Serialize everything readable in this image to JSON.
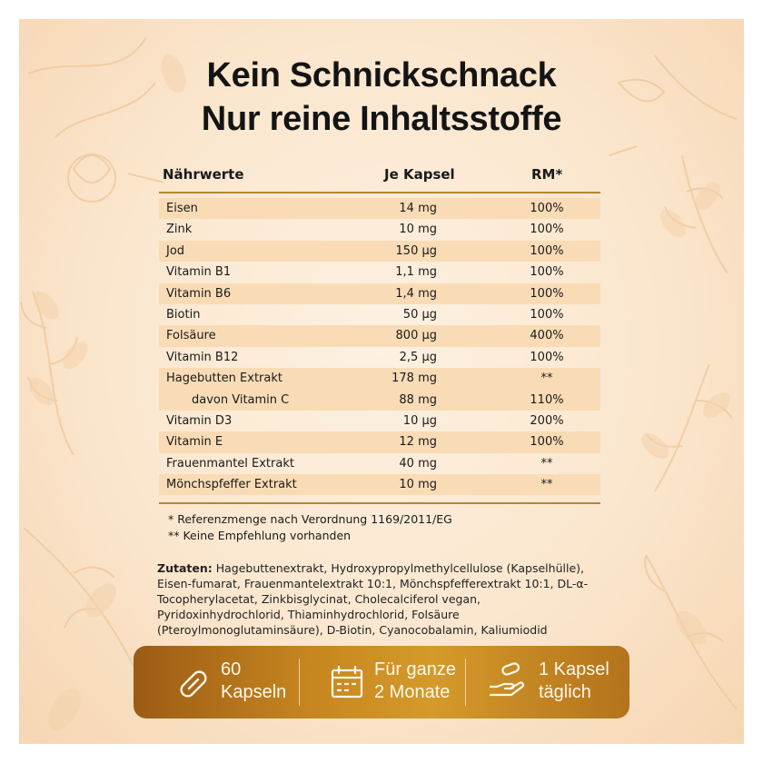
{
  "title": {
    "line1": "Kein Schnickschnack",
    "line2": "Nur reine Inhaltsstoffe"
  },
  "table": {
    "headers": {
      "name": "Nährwerte",
      "amount": "Je Kapsel",
      "rm": "RM*"
    },
    "rows": [
      {
        "name": "Eisen",
        "amount": "14 mg",
        "rm": "100%"
      },
      {
        "name": "Zink",
        "amount": "10 mg",
        "rm": "100%"
      },
      {
        "name": "Jod",
        "amount": "150 µg",
        "rm": "100%"
      },
      {
        "name": "Vitamin B1",
        "amount": "1,1 mg",
        "rm": "100%"
      },
      {
        "name": "Vitamin B6",
        "amount": "1,4 mg",
        "rm": "100%"
      },
      {
        "name": "Biotin",
        "amount": "50 µg",
        "rm": "100%"
      },
      {
        "name": "Folsäure",
        "amount": "800 µg",
        "rm": "400%"
      },
      {
        "name": "Vitamin B12",
        "amount": "2,5 µg",
        "rm": "100%"
      },
      {
        "name": "Hagebutten Extrakt",
        "amount": "178 mg",
        "rm": "**"
      },
      {
        "name": "davon Vitamin C",
        "amount": "88 mg",
        "rm": "110%"
      },
      {
        "name": "Vitamin D3",
        "amount": "10 µg",
        "rm": "200%"
      },
      {
        "name": "Vitamin E",
        "amount": "12 mg",
        "rm": "100%"
      },
      {
        "name": "Frauenmantel Extrakt",
        "amount": "40 mg",
        "rm": "**"
      },
      {
        "name": "Mönchspfeffer Extrakt",
        "amount": "10 mg",
        "rm": "**"
      }
    ]
  },
  "footnotes": {
    "note1": "* Referenzmenge nach Verordnung 1169/2011/EG",
    "note2": "** Keine Empfehlung vorhanden"
  },
  "ingredients": {
    "label": "Zutaten:",
    "text": "Hagebuttenextrakt, Hydroxypropylmethylcellulose (Kapselhülle), Eisen-fumarat, Frauenmantelextrakt 10:1, Mönchspfefferextrakt 10:1, DL-α-Tocopherylacetat, Zinkbisglycinat, Cholecalciferol vegan, Pyridoxinhydrochlorid, Thiaminhydrochlorid, Folsäure (Pteroylmonoglutaminsäure), D-Biotin, Cyanocobalamin, Kaliumiodid"
  },
  "features": [
    {
      "icon": "capsule-icon",
      "line1": "60",
      "line2": "Kapseln"
    },
    {
      "icon": "calendar-icon",
      "line1": "Für ganze",
      "line2": "2 Monate"
    },
    {
      "icon": "hand-capsule-icon",
      "line1": "1 Kapsel",
      "line2": "täglich"
    }
  ],
  "colors": {
    "background": "#fbe6cd",
    "row_shade": "#f9dcb6",
    "gold": "#b8862c",
    "bar": "#c6851f"
  }
}
